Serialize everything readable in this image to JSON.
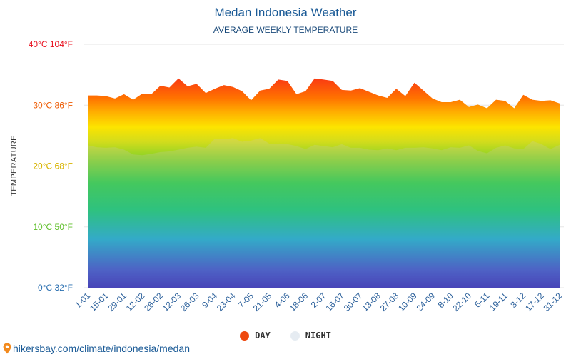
{
  "chart_data": {
    "type": "area",
    "title": "Medan Indonesia Weather",
    "subtitle": "AVERAGE WEEKLY TEMPERATURE",
    "ylabel": "TEMPERATURE",
    "ylim": [
      0,
      40
    ],
    "y_ticks": [
      {
        "value": 0,
        "label": "0°C 32°F",
        "color": "#2a6fb0"
      },
      {
        "value": 10,
        "label": "10°C 50°F",
        "color": "#5fbf2a"
      },
      {
        "value": 20,
        "label": "20°C 68°F",
        "color": "#d8b400"
      },
      {
        "value": 30,
        "label": "30°C 86°F",
        "color": "#ee5a00"
      },
      {
        "value": 40,
        "label": "40°C 104°F",
        "color": "#e8101e"
      }
    ],
    "x_labels": [
      "1-01",
      "15-01",
      "29-01",
      "12-02",
      "26-02",
      "12-03",
      "26-03",
      "9-04",
      "23-04",
      "7-05",
      "21-05",
      "4-06",
      "18-06",
      "2-07",
      "16-07",
      "30-07",
      "13-08",
      "27-08",
      "10-09",
      "24-09",
      "8-10",
      "22-10",
      "5-11",
      "19-11",
      "3-12",
      "17-12",
      "31-12"
    ],
    "legend": [
      {
        "name": "DAY",
        "color": "#ee4a10"
      },
      {
        "name": "NIGHT",
        "color": "#e6ecf2"
      }
    ],
    "series": [
      {
        "name": "DAY",
        "values": [
          31.6,
          31.6,
          31.5,
          31.1,
          31.8,
          30.9,
          31.9,
          31.8,
          33.2,
          32.9,
          34.4,
          33.1,
          33.5,
          32.0,
          32.7,
          33.3,
          33.0,
          32.3,
          30.8,
          32.4,
          32.7,
          34.2,
          34.0,
          31.8,
          32.3,
          34.4,
          34.2,
          34.0,
          32.5,
          32.4,
          32.8,
          32.2,
          31.6,
          31.2,
          32.7,
          31.5,
          33.7,
          32.4,
          31.1,
          30.5,
          30.5,
          30.9,
          29.7,
          30.1,
          29.5,
          30.9,
          30.7,
          29.5,
          31.7,
          30.9,
          30.7,
          30.8,
          30.3
        ]
      },
      {
        "name": "NIGHT",
        "values": [
          23.4,
          23.1,
          23.0,
          23.1,
          22.7,
          21.9,
          21.8,
          22.0,
          22.3,
          22.4,
          22.7,
          23.0,
          23.2,
          23.0,
          24.5,
          24.4,
          24.6,
          24.0,
          24.2,
          24.6,
          23.7,
          23.6,
          23.6,
          23.3,
          22.8,
          23.5,
          23.3,
          23.1,
          23.6,
          23.0,
          23.0,
          22.7,
          22.6,
          22.9,
          22.6,
          23.0,
          23.0,
          23.1,
          22.9,
          22.6,
          23.1,
          23.0,
          23.4,
          22.5,
          22.1,
          23.0,
          23.4,
          22.9,
          22.8,
          24.1,
          23.6,
          22.8,
          23.5
        ]
      }
    ],
    "grid": true
  },
  "source": "hikersbay.com/climate/indonesia/medan"
}
